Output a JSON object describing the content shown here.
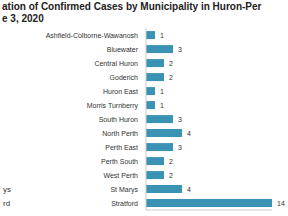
{
  "chart_data": {
    "type": "bar",
    "orientation": "horizontal",
    "title": "ation of Confirmed Cases by Municipality in Huron-Per",
    "subtitle": "e 3, 2020",
    "categories": [
      "Ashfield-Colborne-Wawanosh",
      "Bluewater",
      "Central Huron",
      "Goderich",
      "Huron East",
      "Morris Turnberry",
      "South Huron",
      "North Perth",
      "Perth East",
      "Perth South",
      "West Perth",
      "St Marys",
      "Stratford"
    ],
    "values": [
      1,
      3,
      2,
      2,
      1,
      1,
      3,
      4,
      3,
      2,
      2,
      4,
      14
    ],
    "color": "#3a93b3",
    "xlim": [
      0,
      14
    ],
    "tick_labels": "y",
    "data_labels": true,
    "grid": false,
    "annotations": [
      {
        "text": "ys",
        "category": "St Marys"
      },
      {
        "text": "rd",
        "category": "Stratford"
      }
    ]
  }
}
